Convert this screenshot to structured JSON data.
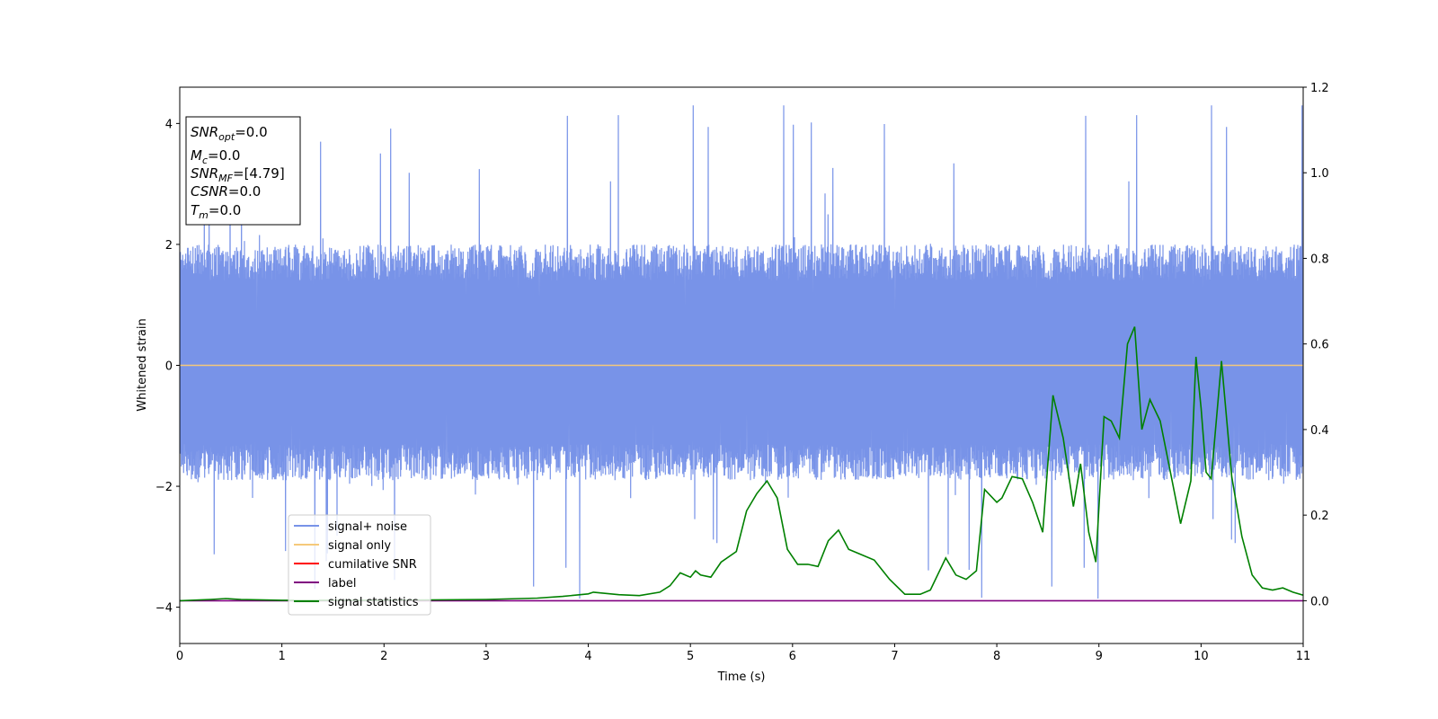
{
  "chart_data": {
    "type": "line",
    "xlabel": "Time (s)",
    "ylabel": "Whitened strain",
    "xlim": [
      0,
      11
    ],
    "ylim_left": [
      -4.6,
      4.6
    ],
    "ylim_right": [
      -0.1,
      1.2
    ],
    "x_ticks": [
      "0",
      "1",
      "2",
      "3",
      "4",
      "5",
      "6",
      "7",
      "8",
      "9",
      "10",
      "11"
    ],
    "y_ticks_left": [
      "−4",
      "−2",
      "0",
      "2",
      "4"
    ],
    "y_ticks_right": [
      "0.0",
      "0.2",
      "0.4",
      "0.6",
      "0.8",
      "1.0",
      "1.2"
    ],
    "grid": false,
    "legend_position": "lower-left",
    "series": [
      {
        "name": "signal+ noise",
        "color": "#7893e8",
        "axis": "left",
        "kind": "noise",
        "band_low": -1.9,
        "band_high": 2.0,
        "center": 0.0
      },
      {
        "name": "signal only",
        "color": "#f5c97a",
        "axis": "left",
        "x": [
          0,
          11
        ],
        "y": [
          0,
          0
        ]
      },
      {
        "name": "cumilative SNR",
        "color": "#ff0000",
        "axis": "right",
        "x": [],
        "y": []
      },
      {
        "name": "label",
        "color": "#800080",
        "axis": "right",
        "x": [
          0,
          11
        ],
        "y": [
          0,
          0
        ]
      },
      {
        "name": "signal statistics",
        "color": "#008000",
        "axis": "right",
        "x": [
          0,
          0.3,
          0.45,
          0.6,
          1.0,
          2.0,
          3.0,
          3.5,
          3.75,
          4.0,
          4.05,
          4.3,
          4.5,
          4.7,
          4.8,
          4.9,
          5.0,
          5.05,
          5.1,
          5.2,
          5.3,
          5.45,
          5.55,
          5.65,
          5.75,
          5.85,
          5.95,
          6.05,
          6.15,
          6.25,
          6.35,
          6.45,
          6.55,
          6.65,
          6.8,
          6.95,
          7.1,
          7.25,
          7.35,
          7.5,
          7.6,
          7.7,
          7.8,
          7.88,
          8.0,
          8.05,
          8.15,
          8.25,
          8.35,
          8.45,
          8.55,
          8.65,
          8.75,
          8.82,
          8.9,
          8.97,
          9.05,
          9.12,
          9.2,
          9.28,
          9.35,
          9.42,
          9.5,
          9.6,
          9.7,
          9.8,
          9.9,
          9.95,
          10.0,
          10.05,
          10.1,
          10.2,
          10.3,
          10.4,
          10.5,
          10.6,
          10.7,
          10.8,
          10.9,
          11.0
        ],
        "y": [
          0.0,
          0.003,
          0.005,
          0.003,
          0.001,
          0.001,
          0.003,
          0.006,
          0.01,
          0.016,
          0.02,
          0.014,
          0.012,
          0.02,
          0.035,
          0.065,
          0.055,
          0.07,
          0.06,
          0.055,
          0.09,
          0.115,
          0.21,
          0.25,
          0.28,
          0.24,
          0.12,
          0.085,
          0.085,
          0.08,
          0.14,
          0.165,
          0.12,
          0.11,
          0.095,
          0.05,
          0.015,
          0.015,
          0.025,
          0.1,
          0.06,
          0.05,
          0.07,
          0.26,
          0.23,
          0.24,
          0.29,
          0.285,
          0.23,
          0.16,
          0.48,
          0.38,
          0.22,
          0.32,
          0.16,
          0.09,
          0.43,
          0.42,
          0.38,
          0.6,
          0.64,
          0.4,
          0.47,
          0.42,
          0.3,
          0.18,
          0.28,
          0.57,
          0.45,
          0.3,
          0.285,
          0.56,
          0.29,
          0.15,
          0.06,
          0.03,
          0.025,
          0.03,
          0.02,
          0.013
        ]
      }
    ]
  },
  "info_box": {
    "snr_opt": {
      "main": "SNR",
      "sub": "opt",
      "value": "=0.0"
    },
    "mc": {
      "main": "M",
      "sub": "c",
      "value": "=0.0"
    },
    "snr_mf": {
      "main": "SNR",
      "sub": "MF",
      "value": "=[4.79]"
    },
    "csnr": {
      "main": "CSNR",
      "value": "=0.0"
    },
    "tm": {
      "main": "T",
      "sub": "m",
      "value": "=0.0"
    }
  },
  "legend": {
    "items": [
      {
        "label": "signal+ noise",
        "color": "#7893e8"
      },
      {
        "label": "signal only",
        "color": "#f5c97a"
      },
      {
        "label": "cumilative SNR",
        "color": "#ff0000"
      },
      {
        "label": "label",
        "color": "#800080"
      },
      {
        "label": "signal statistics",
        "color": "#008000"
      }
    ]
  }
}
